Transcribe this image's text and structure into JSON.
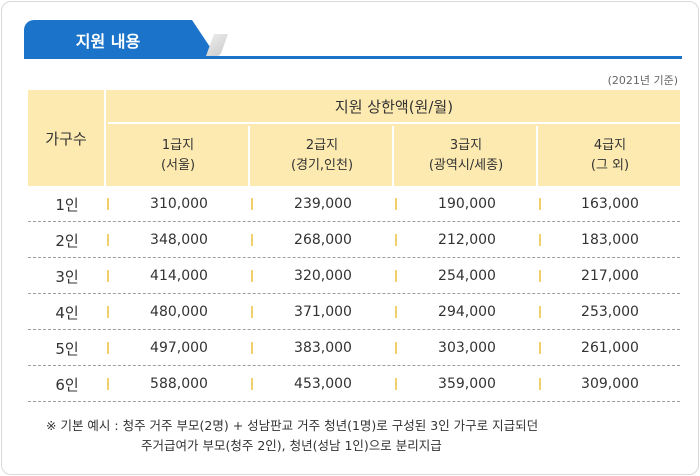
{
  "header": {
    "tab_title": "지원 내용"
  },
  "note": {
    "year": "(2021년 기준)"
  },
  "table": {
    "col_category": "가구수",
    "col_group": "지원 상한액(원/월)",
    "sub_columns": [
      {
        "grade": "1급지",
        "region": "(서울)"
      },
      {
        "grade": "2급지",
        "region": "(경기,인천)"
      },
      {
        "grade": "3급지",
        "region": "(광역시/세종)"
      },
      {
        "grade": "4급지",
        "region": "(그 외)"
      }
    ],
    "rows": [
      {
        "household": "1인",
        "values": [
          "310,000",
          "239,000",
          "190,000",
          "163,000"
        ]
      },
      {
        "household": "2인",
        "values": [
          "348,000",
          "268,000",
          "212,000",
          "183,000"
        ]
      },
      {
        "household": "3인",
        "values": [
          "414,000",
          "320,000",
          "254,000",
          "217,000"
        ]
      },
      {
        "household": "4인",
        "values": [
          "480,000",
          "371,000",
          "294,000",
          "253,000"
        ]
      },
      {
        "household": "5인",
        "values": [
          "497,000",
          "383,000",
          "303,000",
          "261,000"
        ]
      },
      {
        "household": "6인",
        "values": [
          "588,000",
          "453,000",
          "359,000",
          "309,000"
        ]
      }
    ]
  },
  "footnote": {
    "line1": "※  기본 예시 :  청주 거주 부모(2명) + 성남판교 거주 청년(1명)로 구성된 3인 가구로 지급되던",
    "line2": "주거급여가 부모(청주 2인), 청년(성남 1인)으로 분리지급"
  },
  "colors": {
    "accent": "#1b74c9",
    "header_bg": "#fdeab0",
    "tick": "#f1cf6a"
  }
}
